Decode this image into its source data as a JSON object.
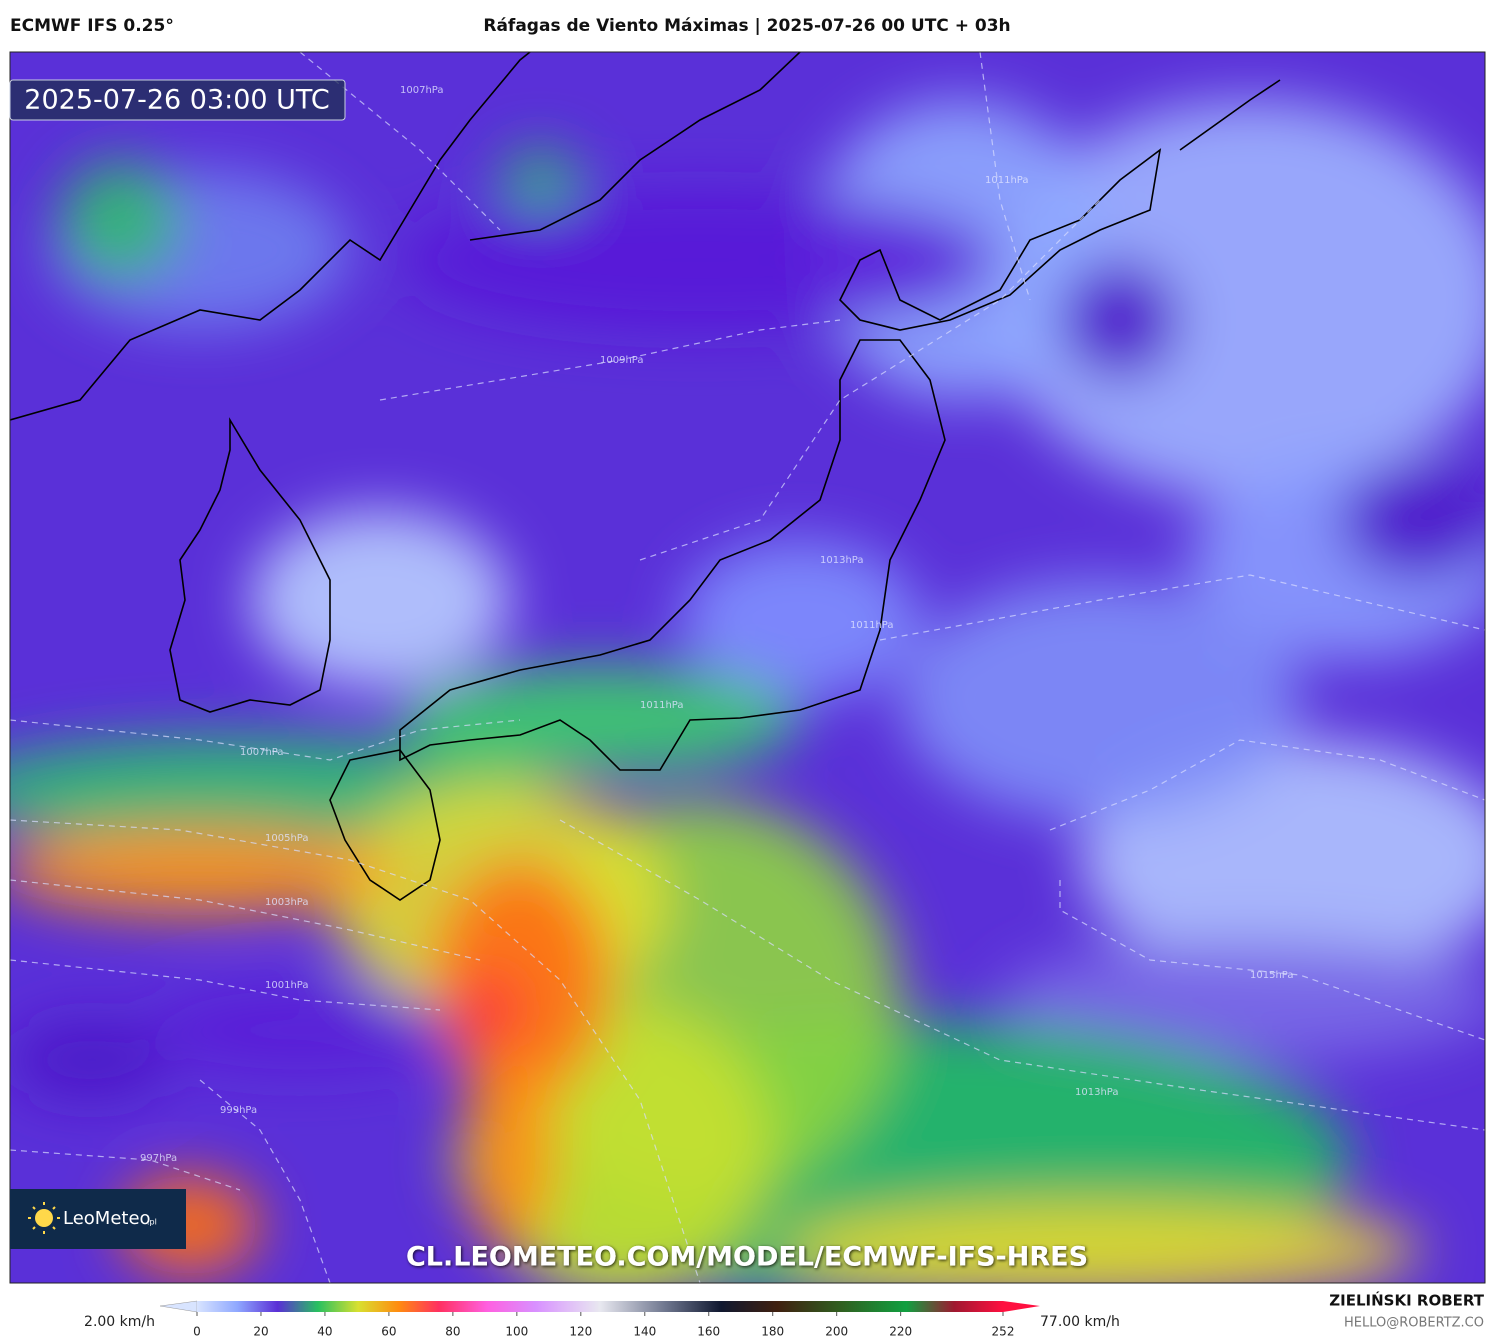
{
  "header": {
    "model": "ECMWF IFS 0.25°",
    "title": "Ráfagas de Viento Máximas | 2025-07-26 00 UTC + 03h"
  },
  "map": {
    "timestamp": "2025-07-26 03:00 UTC",
    "watermark": "CL.LEOMETEO.COM/MODEL/ECMWF-IFS-HRES",
    "logo": {
      "name": "LeoMeteo",
      "suffix": ".pl"
    },
    "isobar_labels": [
      "1007hPa",
      "1011hPa",
      "1009hPa",
      "1013hPa",
      "1011hPa",
      "1007hPa",
      "1005hPa",
      "1003hPa",
      "1001hPa",
      "999hPa",
      "997hPa",
      "1011hPa",
      "1015hPa",
      "1013hPa"
    ]
  },
  "colorbar": {
    "min_label": "2.00 km/h",
    "max_label": "77.00 km/h",
    "ticks": [
      0,
      20,
      40,
      60,
      80,
      100,
      120,
      140,
      160,
      180,
      200,
      220,
      252
    ]
  },
  "author": {
    "name": "ZIELIŃSKI ROBERT",
    "email": "HELLO@ROBERTZ.CO"
  }
}
